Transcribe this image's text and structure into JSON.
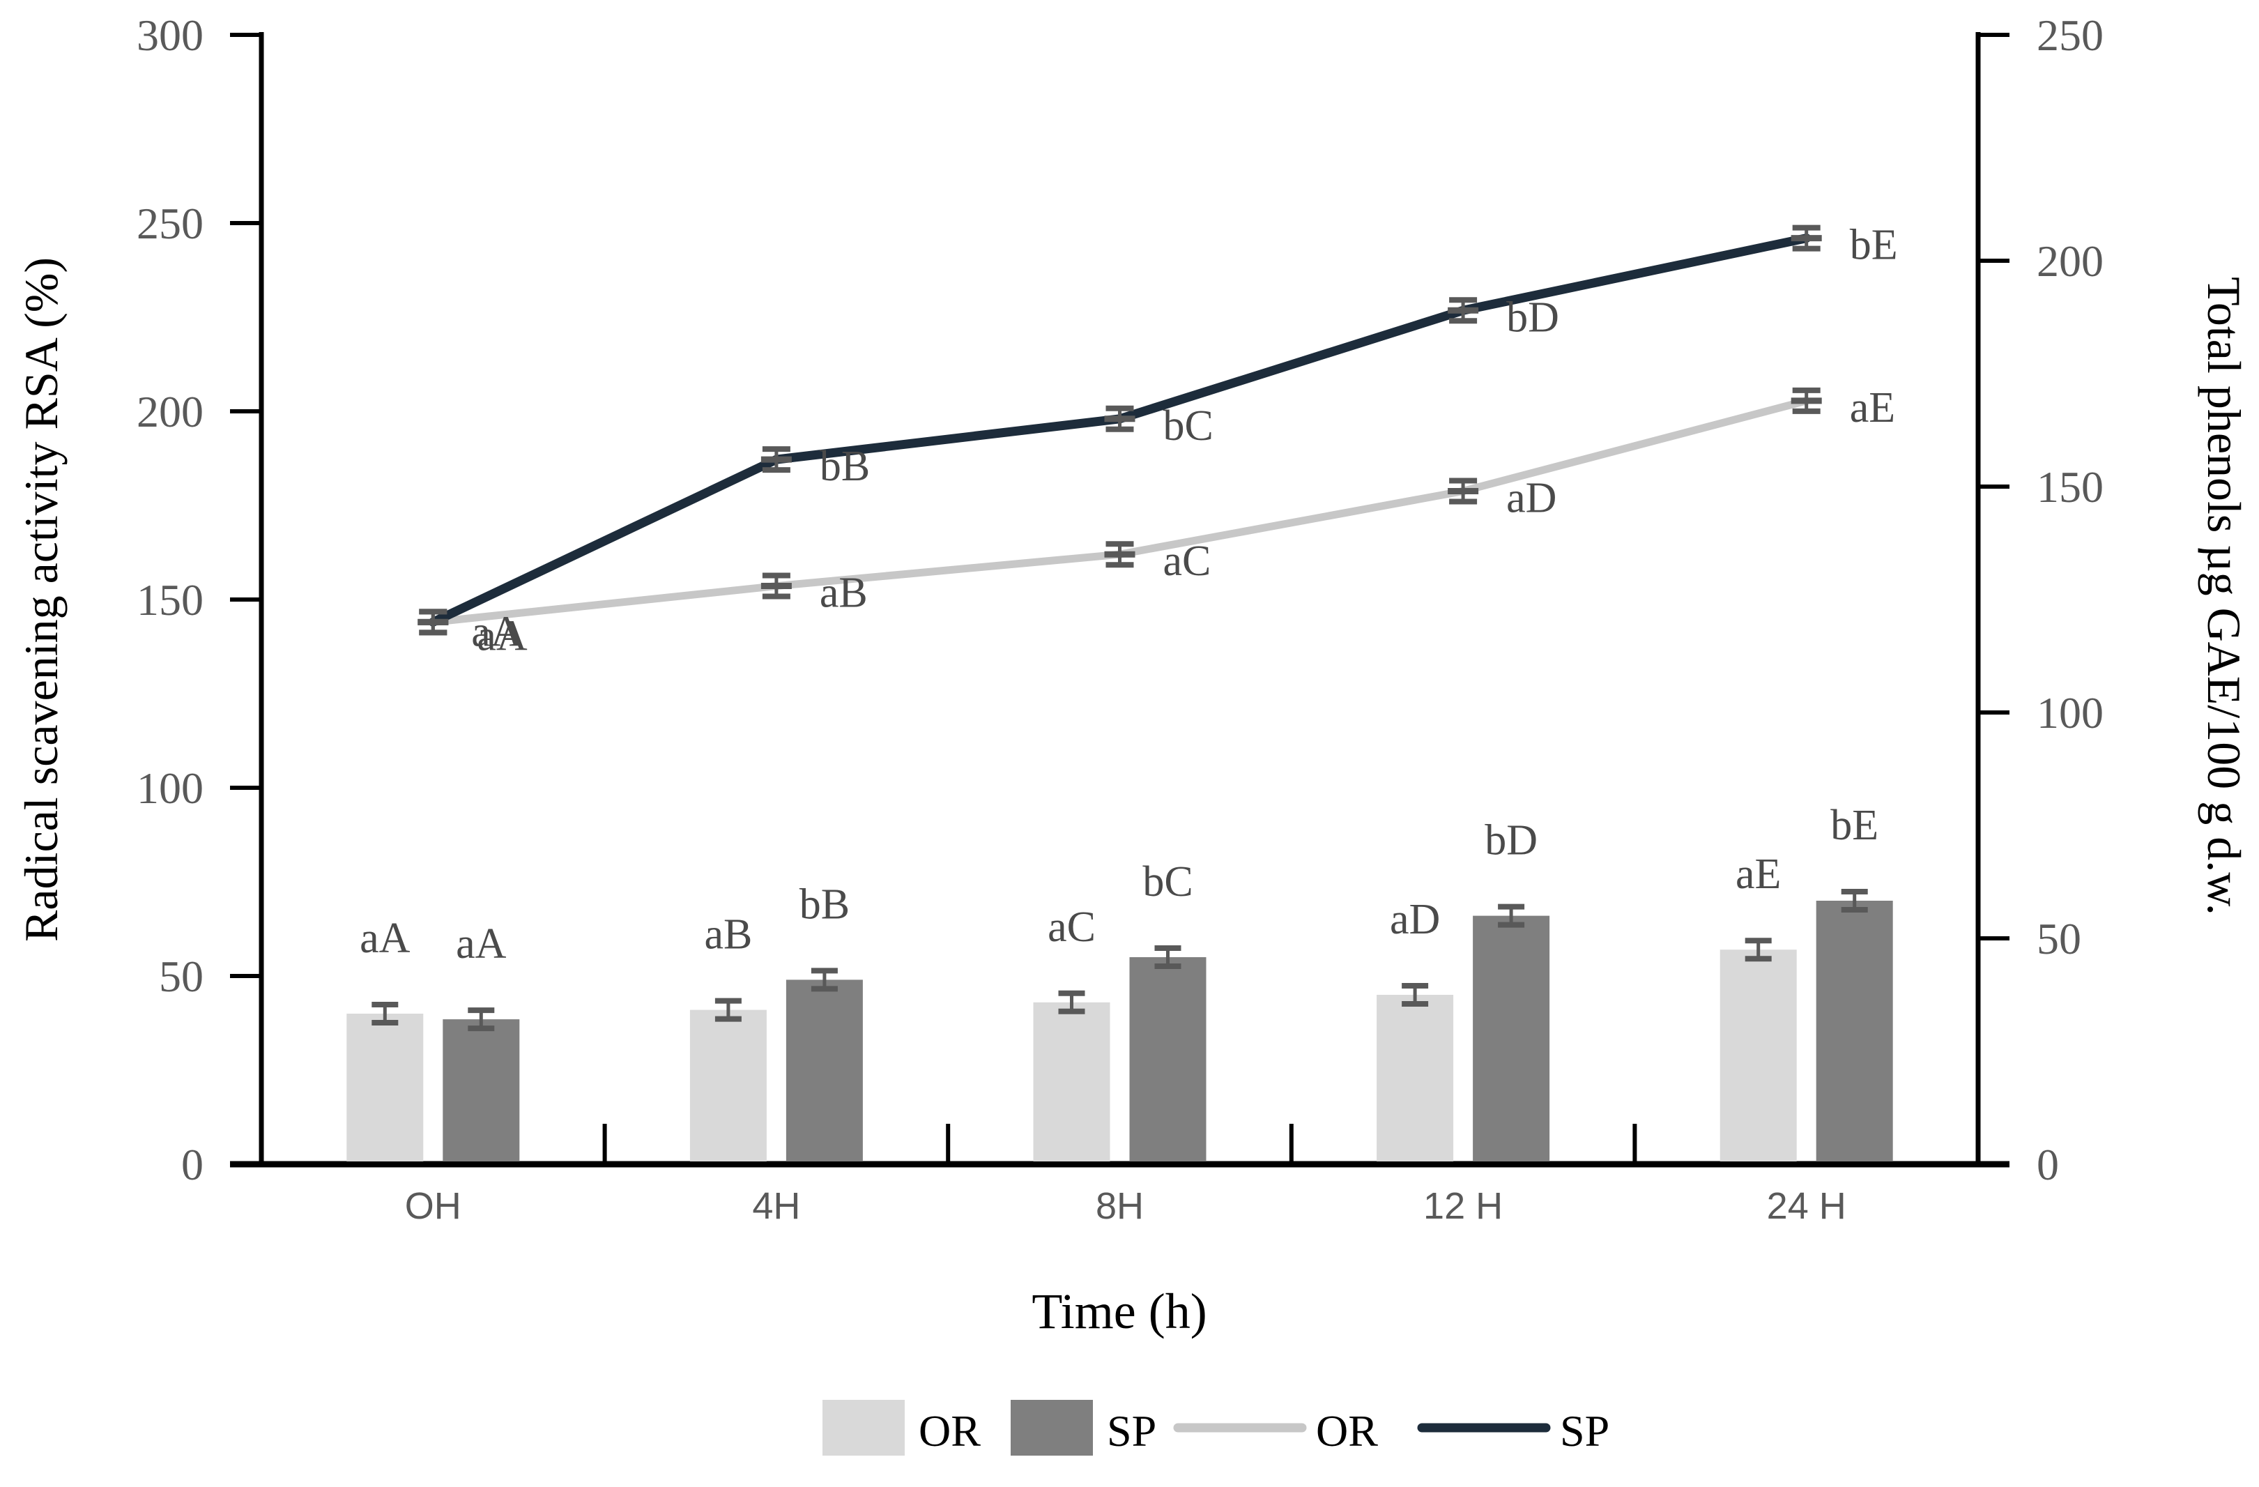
{
  "chart_data": {
    "type": "bar+line combo, dual y-axes",
    "categories": [
      "OH",
      "4H",
      "8H",
      "12 H",
      "24 H"
    ],
    "x_title": "Time (h)",
    "left_axis": {
      "title": "Radical scavening activity RSA (%)",
      "min": 0,
      "max": 300,
      "step": 50,
      "ticks": [
        300,
        250,
        200,
        150,
        100,
        50,
        0
      ]
    },
    "right_axis": {
      "title": "Total phenols µg GAE/100 g d.w.",
      "min": 0,
      "max": 250,
      "step": 50,
      "ticks": [
        250,
        200,
        150,
        100,
        50,
        0
      ]
    },
    "bar_series": [
      {
        "name": "OR",
        "axis": "left",
        "color": "#d9d9d9",
        "values": [
          40,
          41,
          43,
          45,
          57
        ],
        "errors": [
          1.2,
          1.0,
          1.0,
          1.0,
          1.0
        ],
        "labels": [
          "aA",
          "aB",
          "aC",
          "aD",
          "aE"
        ]
      },
      {
        "name": "SP",
        "axis": "left",
        "color": "#7f7f7f",
        "values": [
          38.5,
          49,
          55,
          66,
          70
        ],
        "errors": [
          1.5,
          1.2,
          1.0,
          1.0,
          1.2
        ],
        "labels": [
          "aA",
          "bB",
          "bC",
          "bD",
          "bE"
        ]
      }
    ],
    "line_series": [
      {
        "name": "OR",
        "axis": "right",
        "color": "#c7c7c7",
        "values": [
          120,
          128,
          135,
          149,
          169
        ],
        "errors": [
          2,
          2,
          2,
          2,
          2
        ],
        "labels": [
          "aA",
          "aB",
          "aC",
          "aD",
          "aE"
        ]
      },
      {
        "name": "SP",
        "axis": "right",
        "color": "#1d2c3b",
        "values": [
          120,
          156,
          165,
          189,
          205
        ],
        "errors": [
          2,
          2,
          2,
          2,
          2
        ],
        "labels": [
          "aA",
          "bB",
          "bC",
          "bD",
          "bE"
        ]
      }
    ],
    "legend": [
      {
        "label": "OR",
        "type": "bar",
        "color": "#d9d9d9"
      },
      {
        "label": "SP",
        "type": "bar",
        "color": "#7f7f7f"
      },
      {
        "label": "OR",
        "type": "line",
        "color": "#c7c7c7"
      },
      {
        "label": "SP",
        "type": "line",
        "color": "#1d2c3b"
      }
    ],
    "colors": {
      "error": "#595959",
      "tick_text": "#595959",
      "category_text": "#595959",
      "data_label": "#4a4a4a",
      "axis": "#000000"
    },
    "layout_hints": {
      "grid": "off",
      "legend_position": "bottom-center"
    }
  }
}
